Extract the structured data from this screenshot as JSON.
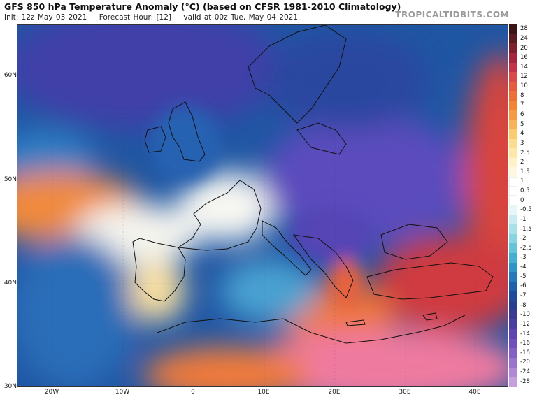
{
  "header": {
    "title": "GFS 850 hPa Temperature Anomaly (°C) (based on CFSR 1981-2010 Climatology)",
    "init": "Init: 12z May 03 2021",
    "forecast_hour": "Forecast Hour: [12]",
    "valid": "valid at 00z Tue, May 04 2021",
    "brand": "TROPICALTIDBITS.COM"
  },
  "axes": {
    "lat_labels": [
      "60N",
      "50N",
      "40N",
      "30N"
    ],
    "lon_labels": [
      "20W",
      "10W",
      "0",
      "10E",
      "20E",
      "30E",
      "40E"
    ]
  },
  "colorbar": {
    "labels": [
      "28",
      "24",
      "20",
      "16",
      "14",
      "12",
      "10",
      "8",
      "7",
      "6",
      "5",
      "4",
      "3",
      "2.5",
      "2",
      "1.5",
      "1",
      "0.5",
      "0",
      "-0.5",
      "-1",
      "-1.5",
      "-2",
      "-2.5",
      "-3",
      "-4",
      "-5",
      "-6",
      "-7",
      "-8",
      "-10",
      "-12",
      "-14",
      "-16",
      "-18",
      "-20",
      "-24",
      "-28"
    ],
    "colors": [
      "#3a1416",
      "#5a1a20",
      "#7d1f2e",
      "#a3263c",
      "#c23449",
      "#d94b4b",
      "#e45d3f",
      "#ec7136",
      "#f28538",
      "#f69b45",
      "#f8b257",
      "#facb6f",
      "#fbdd8d",
      "#fde8a8",
      "#fef2c6",
      "#fff8e0",
      "#ffffff",
      "#ffffff",
      "#ffffff",
      "#e7f6f7",
      "#c8ecef",
      "#a8e2e8",
      "#86d5e0",
      "#64c5d8",
      "#45afd0",
      "#2f95c6",
      "#2479bb",
      "#1e5fab",
      "#1f4b9c",
      "#2a3e90",
      "#3a3a95",
      "#4b3ea2",
      "#5e45b1",
      "#7050bc",
      "#8460c6",
      "#9a73cf",
      "#b188d6",
      "#c6a0de"
    ]
  },
  "map_colors": {
    "ocean_atlantic": "#1a4f9a",
    "deep_anomaly_purple": "#5c4bbd",
    "warm_east": "#d9443f",
    "hot_core": "#f07aa2",
    "neutral_white": "#f6f6f0",
    "borders": "#111111"
  }
}
